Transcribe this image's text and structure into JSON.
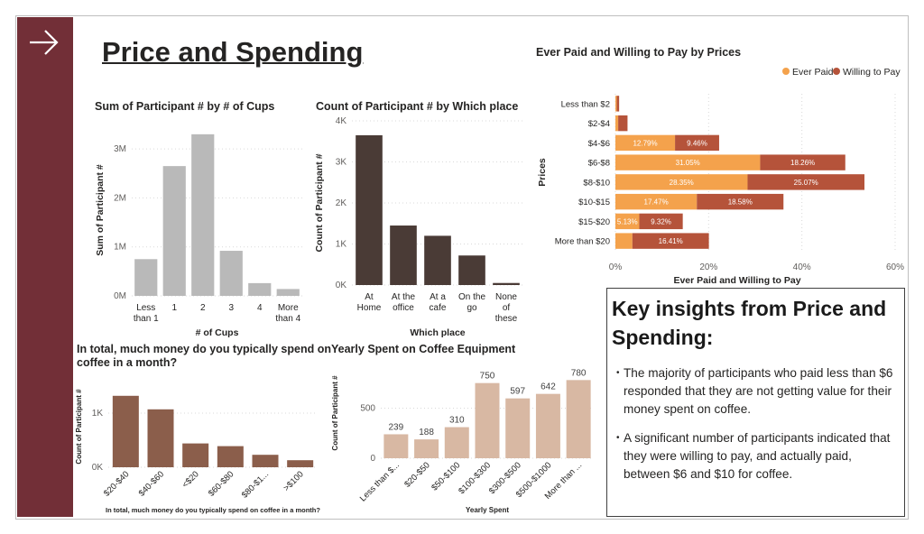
{
  "page": {
    "title": "Price and Spending"
  },
  "nav": {
    "icon": "arrow-right-icon"
  },
  "colors": {
    "sidebar": "#722f37",
    "gray_bar": "#b9b9b9",
    "dark_brown": "#4a3b36",
    "mid_brown": "#8b5e4b",
    "light_tan": "#d8b8a3",
    "ever_paid": "#f4a24c",
    "willing_to_pay": "#b5533a"
  },
  "chart_data": [
    {
      "id": "cups",
      "type": "bar",
      "title": "Sum of Participant # by # of Cups",
      "xlabel": "# of Cups",
      "ylabel": "Sum of Participant #",
      "categories": [
        [
          "Less",
          "than 1"
        ],
        [
          "1"
        ],
        [
          "2"
        ],
        [
          "3"
        ],
        [
          "4"
        ],
        [
          "More",
          "than 4"
        ]
      ],
      "values": [
        0.75,
        2.65,
        3.3,
        0.92,
        0.26,
        0.14
      ],
      "ylim": [
        0,
        3.5
      ],
      "yticks": [
        0,
        1,
        2,
        3
      ],
      "ytick_labels": [
        "0M",
        "1M",
        "2M",
        "3M"
      ],
      "grid": true
    },
    {
      "id": "place",
      "type": "bar",
      "title": "Count of Participant # by Which place",
      "xlabel": "Which place",
      "ylabel": "Count of Participant #",
      "categories": [
        [
          "At",
          "Home"
        ],
        [
          "At the",
          "office"
        ],
        [
          "At a",
          "cafe"
        ],
        [
          "On the",
          "go"
        ],
        [
          "None",
          "of",
          "these"
        ]
      ],
      "values": [
        3.65,
        1.45,
        1.2,
        0.72,
        0.05
      ],
      "ylim": [
        0,
        4
      ],
      "yticks": [
        0,
        1,
        2,
        3,
        4
      ],
      "ytick_labels": [
        "0K",
        "1K",
        "2K",
        "3K",
        "4K"
      ],
      "grid": true
    },
    {
      "id": "monthly",
      "type": "bar",
      "title": "In total, much money do you typically spend on coffee in a month?",
      "xlabel": "In total, much money do you typically spend on coffee in a month?",
      "ylabel": "Count of Participant #",
      "categories": [
        "$20-$40",
        "$40-$60",
        "<$20",
        "$60-$80",
        "$80-$1...",
        ">$100"
      ],
      "values": [
        1.32,
        1.07,
        0.44,
        0.39,
        0.23,
        0.13
      ],
      "ylim": [
        0,
        1.5
      ],
      "yticks": [
        0,
        1
      ],
      "ytick_labels": [
        "0K",
        "1K"
      ],
      "grid": true
    },
    {
      "id": "equipment",
      "type": "bar",
      "title": "Yearly Spent on Coffee Equipment",
      "xlabel": "Yearly Spent",
      "ylabel": "Count of Participant #",
      "categories": [
        "Less than $...",
        "$20-$50",
        "$50-$100",
        "$100-$300",
        "$300-$500",
        "$500-$1000",
        "More than ..."
      ],
      "values": [
        239,
        188,
        310,
        750,
        597,
        642,
        780
      ],
      "ylim": [
        0,
        900
      ],
      "yticks": [
        0,
        500
      ],
      "ytick_labels": [
        "0",
        "500"
      ],
      "grid": true
    },
    {
      "id": "prices",
      "type": "bar",
      "orientation": "horizontal",
      "stacked": true,
      "title": "Ever Paid and Willing to Pay by Prices",
      "xlabel": "Ever Paid and Willing to Pay",
      "ylabel": "Prices",
      "categories": [
        "Less than $2",
        "$2-$4",
        "$4-$6",
        "$6-$8",
        "$8-$10",
        "$10-$15",
        "$15-$20",
        "More than $20"
      ],
      "series": [
        {
          "name": "Ever Paid",
          "values": [
            0.3,
            0.6,
            12.79,
            31.05,
            28.35,
            17.47,
            5.13,
            3.64
          ],
          "labels": [
            "",
            "",
            "12.79%",
            "31.05%",
            "28.35%",
            "17.47%",
            "5.13%",
            ""
          ]
        },
        {
          "name": "Willing to Pay",
          "values": [
            0.5,
            2.0,
            9.46,
            18.26,
            25.07,
            18.58,
            9.32,
            16.41
          ],
          "labels": [
            "",
            "",
            "9.46%",
            "18.26%",
            "25.07%",
            "18.58%",
            "9.32%",
            "16.41%"
          ]
        }
      ],
      "xlim": [
        0,
        60
      ],
      "xticks": [
        0,
        20,
        40,
        60
      ],
      "xtick_labels": [
        "0%",
        "20%",
        "40%",
        "60%"
      ],
      "legend": "top-right",
      "grid": true
    }
  ],
  "insights": {
    "title": "Key insights from Price and Spending:",
    "bullets": [
      "The majority of participants who paid less than $6 responded that they are not getting value for their money spent on coffee.",
      "A significant number of participants indicated that they were willing to pay, and actually paid, between $6 and $10 for coffee."
    ],
    "bullet_glyph": "•"
  }
}
